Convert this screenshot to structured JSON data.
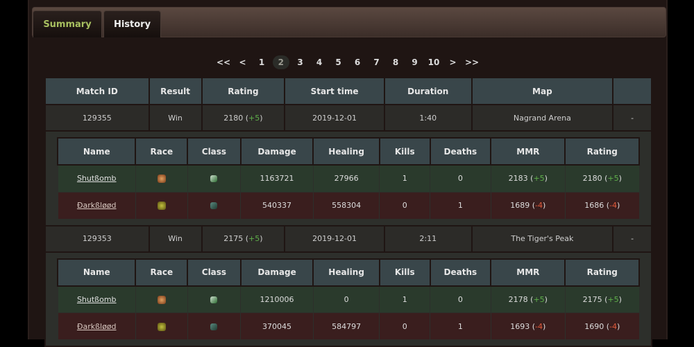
{
  "tabs": [
    {
      "label": "Summary",
      "active": true
    },
    {
      "label": "History",
      "active": false
    }
  ],
  "pagination": {
    "items": [
      "<<",
      "<",
      "1",
      "2",
      "3",
      "4",
      "5",
      "6",
      "7",
      "8",
      "9",
      "10",
      ">",
      ">>"
    ],
    "current": "2"
  },
  "columns": [
    "Match ID",
    "Result",
    "Rating",
    "Start time",
    "Duration",
    "Map",
    ""
  ],
  "player_columns": [
    "Name",
    "Race",
    "Class",
    "Damage",
    "Healing",
    "Kills",
    "Deaths",
    "MMR",
    "Rating"
  ],
  "colors": {
    "win_row": "#2a3a2c",
    "loss_row": "#3a1e1e",
    "positive": "#5fb04a",
    "negative": "#e05a3a",
    "active_tab": "#a8c060"
  },
  "matches": [
    {
      "id": "129355",
      "result": "Win",
      "rating": "2180",
      "rating_delta": "+5",
      "start": "2019-12-01",
      "duration": "1:40",
      "map": "Nagrand Arena",
      "extra": "-",
      "players": [
        {
          "name": "Shutßomb",
          "race_icon": "race-icon",
          "class_icon": "class-icon",
          "damage": "1163721",
          "healing": "27966",
          "kills": "1",
          "deaths": "0",
          "mmr": "2183",
          "mmr_delta": "+5",
          "rating": "2180",
          "rating_delta": "+5",
          "team": "w"
        },
        {
          "name": "Ðarkßløød",
          "race_icon": "race-icon",
          "class_icon": "class-icon",
          "damage": "540337",
          "healing": "558304",
          "kills": "0",
          "deaths": "1",
          "mmr": "1689",
          "mmr_delta": "-4",
          "rating": "1686",
          "rating_delta": "-4",
          "team": "l"
        }
      ]
    },
    {
      "id": "129353",
      "result": "Win",
      "rating": "2175",
      "rating_delta": "+5",
      "start": "2019-12-01",
      "duration": "2:11",
      "map": "The Tiger's Peak",
      "extra": "-",
      "players": [
        {
          "name": "Shutßomb",
          "race_icon": "race-icon",
          "class_icon": "class-icon",
          "damage": "1210006",
          "healing": "0",
          "kills": "1",
          "deaths": "0",
          "mmr": "2178",
          "mmr_delta": "+5",
          "rating": "2175",
          "rating_delta": "+5",
          "team": "w"
        },
        {
          "name": "Ðarkßløød",
          "race_icon": "race-icon",
          "class_icon": "class-icon",
          "damage": "370045",
          "healing": "584797",
          "kills": "0",
          "deaths": "1",
          "mmr": "1693",
          "mmr_delta": "-4",
          "rating": "1690",
          "rating_delta": "-4",
          "team": "l"
        }
      ]
    }
  ]
}
